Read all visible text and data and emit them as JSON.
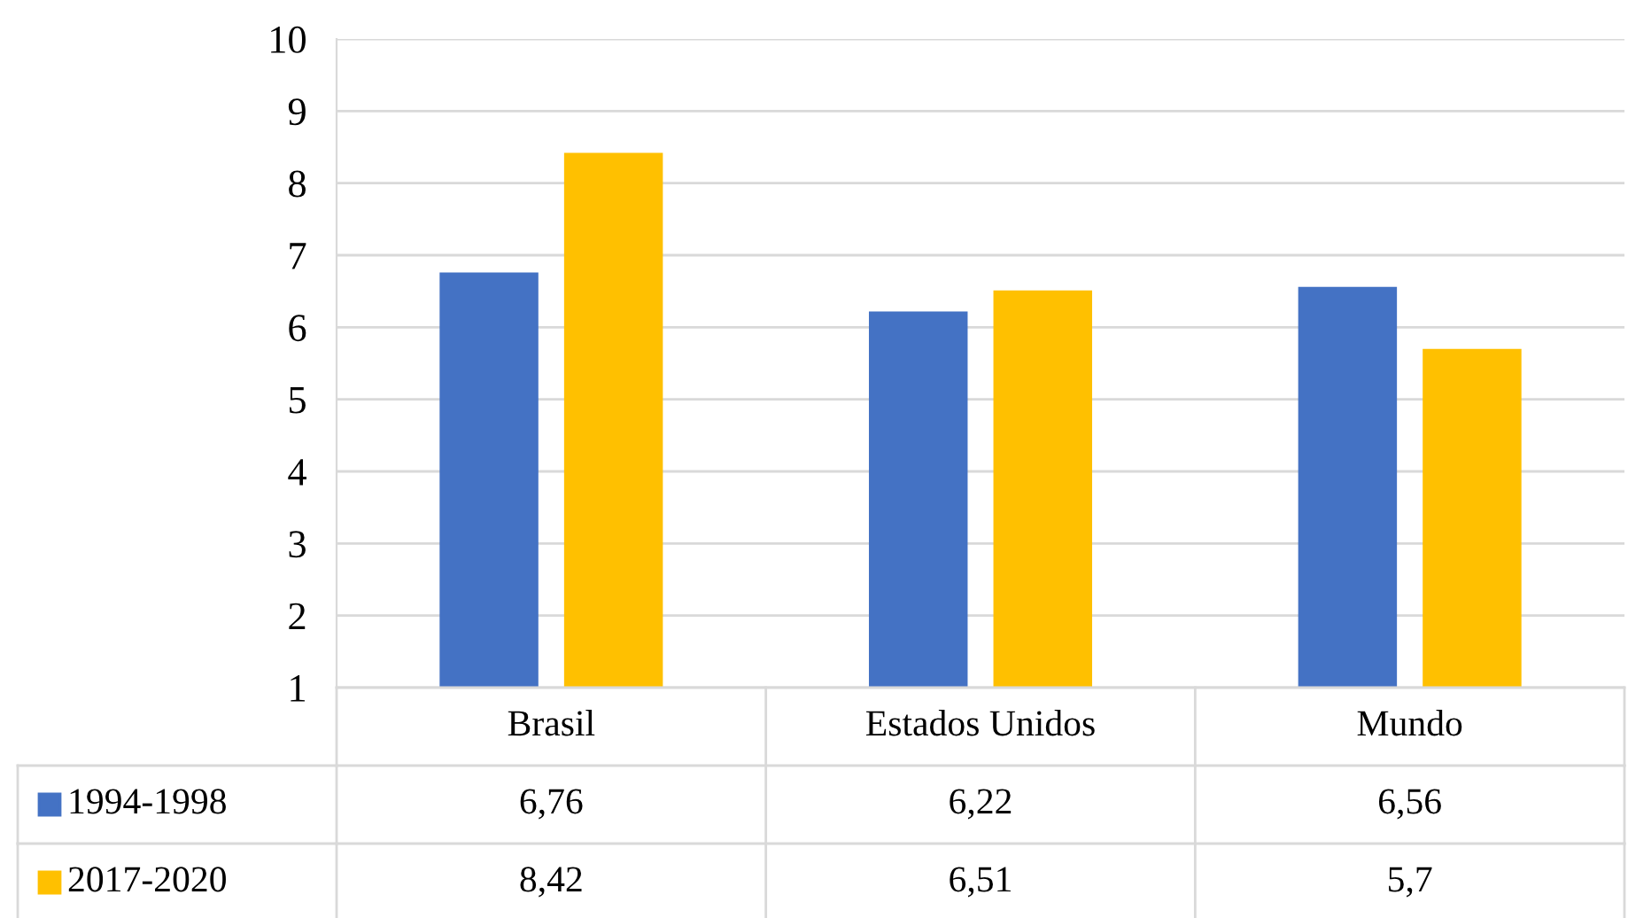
{
  "chart_data": {
    "type": "bar",
    "categories": [
      "Brasil",
      "Estados Unidos",
      "Mundo"
    ],
    "series": [
      {
        "name": "1994-1998",
        "color": "#4472c4",
        "values": [
          6.76,
          6.22,
          6.56
        ],
        "value_labels": [
          "6,76",
          "6,22",
          "6,56"
        ]
      },
      {
        "name": "2017-2020",
        "color": "#ffc000",
        "values": [
          8.42,
          6.51,
          5.7
        ],
        "value_labels": [
          "8,42",
          "6,51",
          "5,7"
        ]
      }
    ],
    "ylim": [
      1,
      10
    ],
    "yticks": [
      1,
      2,
      3,
      4,
      5,
      6,
      7,
      8,
      9,
      10
    ],
    "grid": "y",
    "legend": "bottom left"
  }
}
